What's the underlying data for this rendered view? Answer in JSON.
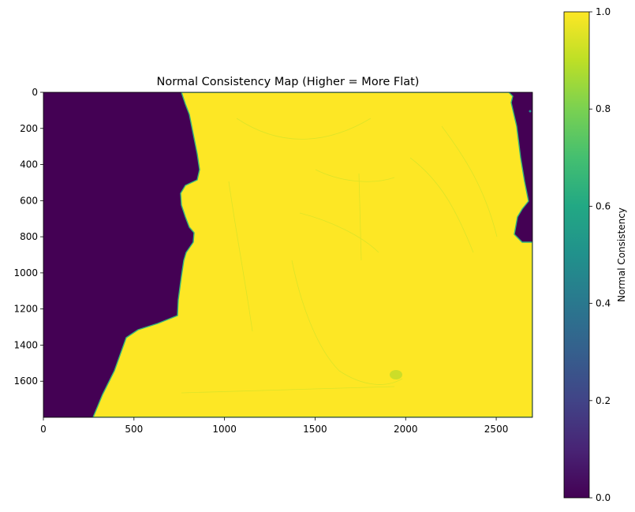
{
  "chart_data": [
    {
      "type": "heatmap",
      "title": "Normal Consistency Map (Higher = More Flat)",
      "xlabel": "",
      "ylabel": "",
      "xlim": [
        0,
        2700
      ],
      "ylim": [
        1800,
        0
      ],
      "xticks": [
        0,
        500,
        1000,
        1500,
        2000,
        2500
      ],
      "yticks": [
        0,
        200,
        400,
        600,
        800,
        1000,
        1200,
        1400,
        1600
      ],
      "colormap": "viridis",
      "value_range": [
        0.0,
        1.0
      ],
      "regions": [
        {
          "label": "left background",
          "value": 0.0
        },
        {
          "label": "central surface",
          "value": 1.0
        },
        {
          "label": "right background",
          "value": 0.0
        }
      ]
    },
    {
      "type": "colorbar",
      "label": "Normal Consistency",
      "range": [
        0.0,
        1.0
      ],
      "ticks": [
        "0.0",
        "0.2",
        "0.4",
        "0.6",
        "0.8",
        "1.0"
      ]
    }
  ],
  "colors": {
    "low": "#440154",
    "high": "#fde725",
    "edge": "#35b779"
  }
}
